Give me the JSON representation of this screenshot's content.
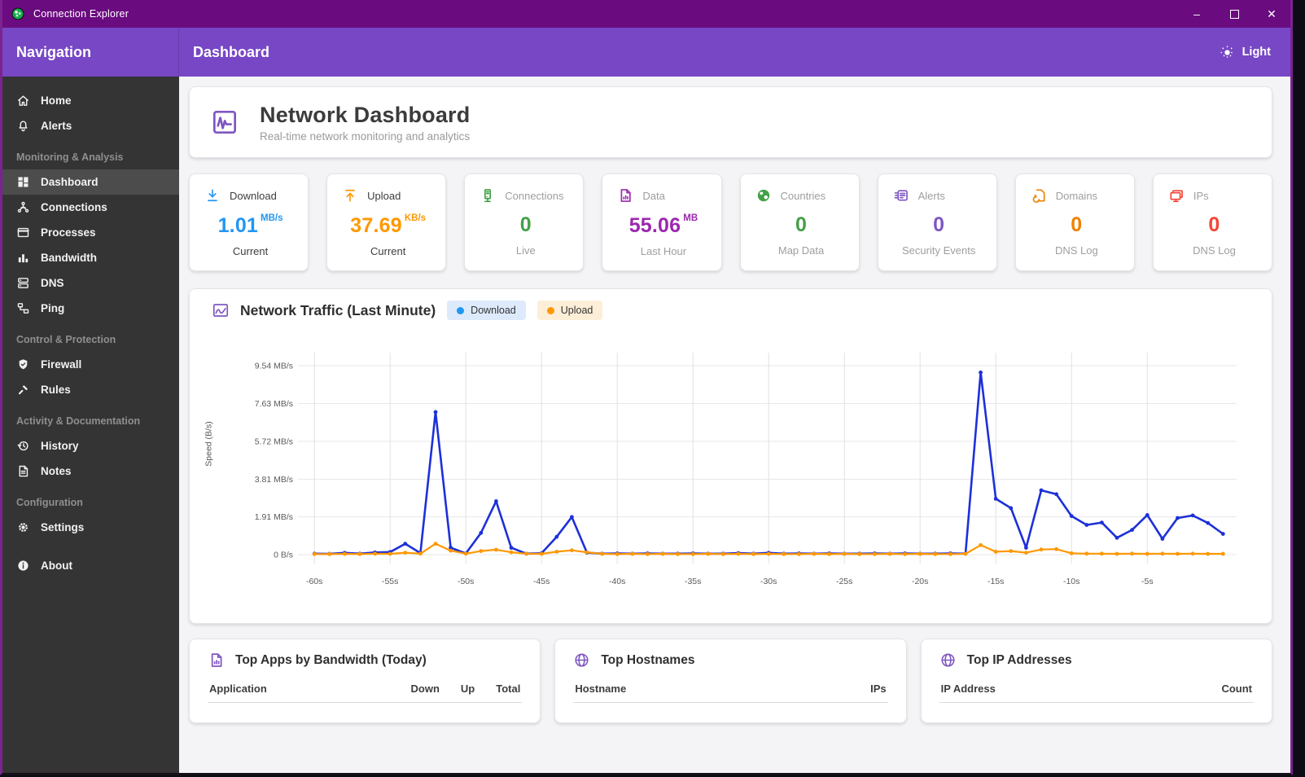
{
  "window": {
    "title": "Connection Explorer"
  },
  "header": {
    "title": "Dashboard",
    "theme_label": "Light"
  },
  "nav": {
    "header": "Navigation",
    "sections": [
      {
        "header": "",
        "items": [
          {
            "icon": "home-icon",
            "label": "Home"
          },
          {
            "icon": "bell-icon",
            "label": "Alerts"
          }
        ]
      },
      {
        "header": "Monitoring & Analysis",
        "items": [
          {
            "icon": "dashboard-icon",
            "label": "Dashboard",
            "active": true
          },
          {
            "icon": "connections-icon",
            "label": "Connections"
          },
          {
            "icon": "processes-icon",
            "label": "Processes"
          },
          {
            "icon": "bandwidth-icon",
            "label": "Bandwidth"
          },
          {
            "icon": "dns-icon",
            "label": "DNS"
          },
          {
            "icon": "ping-icon",
            "label": "Ping"
          }
        ]
      },
      {
        "header": "Control & Protection",
        "items": [
          {
            "icon": "firewall-icon",
            "label": "Firewall"
          },
          {
            "icon": "rules-icon",
            "label": "Rules"
          }
        ]
      },
      {
        "header": "Activity & Documentation",
        "items": [
          {
            "icon": "history-icon",
            "label": "History"
          },
          {
            "icon": "notes-icon",
            "label": "Notes"
          }
        ]
      },
      {
        "header": "Configuration",
        "items": [
          {
            "icon": "settings-icon",
            "label": "Settings"
          }
        ]
      }
    ],
    "footer_item": {
      "icon": "about-icon",
      "label": "About"
    }
  },
  "page": {
    "title": "Network Dashboard",
    "subtitle": "Real-time network monitoring and analytics"
  },
  "stats": [
    {
      "icon": "download-arrow-icon",
      "label": "Download",
      "value": "1.01",
      "unit": "MB/s",
      "sub": "Current",
      "color": "#2196f3",
      "muted": false
    },
    {
      "icon": "upload-arrow-icon",
      "label": "Upload",
      "value": "37.69",
      "unit": "KB/s",
      "sub": "Current",
      "color": "#ff9800",
      "muted": false
    },
    {
      "icon": "server-icon",
      "label": "Connections",
      "value": "0",
      "unit": "",
      "sub": "Live",
      "color": "#43a047",
      "muted": true
    },
    {
      "icon": "file-chart-icon",
      "label": "Data",
      "value": "55.06",
      "unit": "MB",
      "sub": "Last Hour",
      "color": "#9c27b0",
      "muted": true
    },
    {
      "icon": "globe-icon",
      "label": "Countries",
      "value": "0",
      "unit": "",
      "sub": "Map Data",
      "color": "#43a047",
      "muted": true
    },
    {
      "icon": "feed-icon",
      "label": "Alerts",
      "value": "0",
      "unit": "",
      "sub": "Security Events",
      "color": "#7e57c2",
      "muted": true
    },
    {
      "icon": "domain-sync-icon",
      "label": "Domains",
      "value": "0",
      "unit": "",
      "sub": "DNS Log",
      "color": "#ef8100",
      "muted": true
    },
    {
      "icon": "monitor-icon",
      "label": "IPs",
      "value": "0",
      "unit": "",
      "sub": "DNS Log",
      "color": "#f44336",
      "muted": true
    }
  ],
  "chart_card": {
    "title": "Network Traffic (Last Minute)",
    "legend": [
      {
        "label": "Download",
        "color": "#2196f3",
        "bg": "#ddeafb"
      },
      {
        "label": "Upload",
        "color": "#ff9800",
        "bg": "#fdeed8"
      }
    ]
  },
  "chart_data": {
    "type": "line",
    "title": "Network Traffic (Last Minute)",
    "ylabel": "Speed (B/s)",
    "xlabel": "",
    "xlim": [
      -60.6,
      0.9
    ],
    "ylim": [
      0,
      10.2
    ],
    "grid": true,
    "x": [
      -60,
      -59,
      -58,
      -57,
      -56,
      -55,
      -54,
      -53,
      -52,
      -51,
      -50,
      -49,
      -48,
      -47,
      -46,
      -45,
      -44,
      -43,
      -42,
      -41,
      -40,
      -39,
      -38,
      -37,
      -36,
      -35,
      -34,
      -33,
      -32,
      -31,
      -30,
      -29,
      -28,
      -27,
      -26,
      -25,
      -24,
      -23,
      -22,
      -21,
      -20,
      -19,
      -18,
      -17,
      -16,
      -15,
      -14,
      -13,
      -12,
      -11,
      -10,
      -9,
      -8,
      -7,
      -6,
      -5,
      -4,
      -3,
      -2,
      -1,
      0
    ],
    "series": [
      {
        "name": "Download",
        "color": "#1d30d8",
        "unit": "MB/s",
        "values": [
          0.05,
          0.04,
          0.09,
          0.05,
          0.11,
          0.13,
          0.55,
          0.08,
          7.2,
          0.35,
          0.06,
          1.1,
          2.7,
          0.35,
          0.05,
          0.07,
          0.9,
          1.9,
          0.1,
          0.05,
          0.06,
          0.05,
          0.06,
          0.05,
          0.05,
          0.06,
          0.05,
          0.05,
          0.08,
          0.05,
          0.09,
          0.05,
          0.06,
          0.05,
          0.06,
          0.05,
          0.05,
          0.06,
          0.05,
          0.06,
          0.05,
          0.05,
          0.06,
          0.05,
          9.2,
          2.82,
          2.35,
          0.35,
          3.25,
          3.05,
          1.95,
          1.5,
          1.62,
          0.85,
          1.25,
          2.0,
          0.8,
          1.85,
          1.98,
          1.6,
          1.05
        ]
      },
      {
        "name": "Upload",
        "color": "#ff9800",
        "unit": "MB/s",
        "values": [
          0.03,
          0.03,
          0.04,
          0.03,
          0.05,
          0.04,
          0.1,
          0.05,
          0.55,
          0.2,
          0.05,
          0.18,
          0.25,
          0.12,
          0.05,
          0.04,
          0.15,
          0.22,
          0.12,
          0.04,
          0.03,
          0.04,
          0.03,
          0.04,
          0.03,
          0.03,
          0.04,
          0.03,
          0.04,
          0.03,
          0.04,
          0.03,
          0.03,
          0.04,
          0.03,
          0.04,
          0.03,
          0.03,
          0.04,
          0.03,
          0.04,
          0.03,
          0.03,
          0.04,
          0.48,
          0.15,
          0.18,
          0.1,
          0.26,
          0.28,
          0.07,
          0.05,
          0.05,
          0.04,
          0.05,
          0.04,
          0.05,
          0.04,
          0.05,
          0.04,
          0.04
        ]
      }
    ],
    "y_ticks": [
      {
        "v": 0,
        "label": "0 B/s"
      },
      {
        "v": 1.91,
        "label": "1.91 MB/s"
      },
      {
        "v": 3.81,
        "label": "3.81 MB/s"
      },
      {
        "v": 5.72,
        "label": "5.72 MB/s"
      },
      {
        "v": 7.63,
        "label": "7.63 MB/s"
      },
      {
        "v": 9.54,
        "label": "9.54 MB/s"
      }
    ],
    "x_ticks": [
      {
        "v": -60,
        "label": "-60s"
      },
      {
        "v": -55,
        "label": "-55s"
      },
      {
        "v": -50,
        "label": "-50s"
      },
      {
        "v": -45,
        "label": "-45s"
      },
      {
        "v": -40,
        "label": "-40s"
      },
      {
        "v": -35,
        "label": "-35s"
      },
      {
        "v": -30,
        "label": "-30s"
      },
      {
        "v": -25,
        "label": "-25s"
      },
      {
        "v": -20,
        "label": "-20s"
      },
      {
        "v": -15,
        "label": "-15s"
      },
      {
        "v": -10,
        "label": "-10s"
      },
      {
        "v": -5,
        "label": "-5s"
      }
    ],
    "legend_position": "top"
  },
  "tables": [
    {
      "icon": "file-chart-icon",
      "title": "Top Apps by Bandwidth (Today)",
      "columns": [
        "Application",
        "Down",
        "Up",
        "Total"
      ]
    },
    {
      "icon": "globe-outline-icon",
      "title": "Top Hostnames",
      "columns": [
        "Hostname",
        "IPs"
      ]
    },
    {
      "icon": "globe-outline-icon",
      "title": "Top IP Addresses",
      "columns": [
        "IP Address",
        "Count"
      ]
    }
  ],
  "colors": {
    "titlebar": "#6b0b80",
    "appbar": "#7747c5",
    "sidebar": "#343434",
    "sidebar_active": "#4c4c4c",
    "chart_download": "#1d30d8",
    "chart_upload": "#ff9800"
  }
}
